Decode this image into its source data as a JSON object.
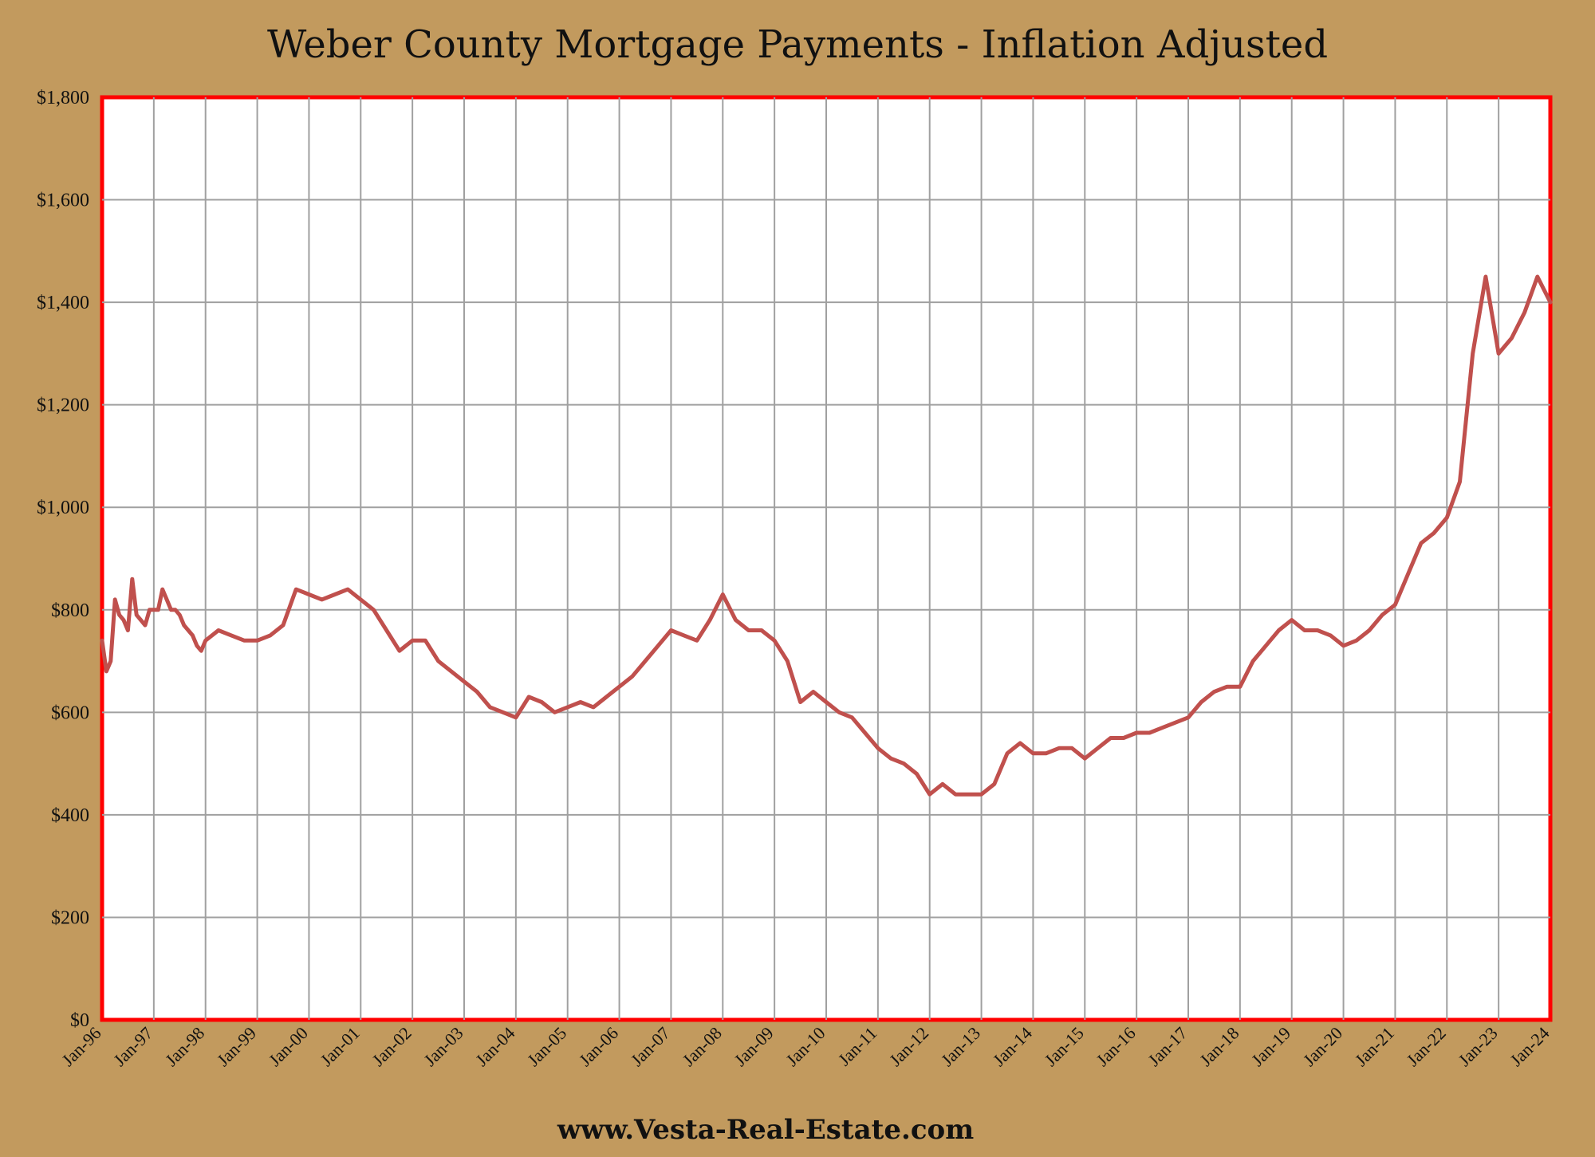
{
  "chart_data": {
    "type": "line",
    "title": "Weber County Mortgage Payments - Inflation Adjusted",
    "footer": "www.Vesta-Real-Estate.com",
    "xlabel": "",
    "ylabel": "",
    "ylim": [
      0,
      1800
    ],
    "y_ticks": [
      "$0",
      "$200",
      "$400",
      "$600",
      "$800",
      "$1,000",
      "$1,200",
      "$1,400",
      "$1,600",
      "$1,800"
    ],
    "x_tick_labels": [
      "Jan-96",
      "Jan-97",
      "Jan-98",
      "Jan-99",
      "Jan-00",
      "Jan-01",
      "Jan-02",
      "Jan-03",
      "Jan-04",
      "Jan-05",
      "Jan-06",
      "Jan-07",
      "Jan-08",
      "Jan-09",
      "Jan-10",
      "Jan-11",
      "Jan-12",
      "Jan-13",
      "Jan-14",
      "Jan-15",
      "Jan-16",
      "Jan-17",
      "Jan-18",
      "Jan-19",
      "Jan-20",
      "Jan-21",
      "Jan-22",
      "Jan-23",
      "Jan-24"
    ],
    "grid": true,
    "colors": {
      "background": "#c29a5e",
      "plot_background": "#ffffff",
      "plot_border": "#ff0000",
      "grid": "#a0a0a0",
      "line": "#c0504d"
    },
    "series": [
      {
        "x": [
          "1996-01",
          "1996-02",
          "1996-03",
          "1996-04",
          "1996-05",
          "1996-06",
          "1996-07",
          "1996-08",
          "1996-09",
          "1996-10",
          "1996-11",
          "1996-12",
          "1997-01",
          "1997-02",
          "1997-03",
          "1997-04",
          "1997-05",
          "1997-06",
          "1997-07",
          "1997-08",
          "1997-09",
          "1997-10",
          "1997-11",
          "1997-12",
          "1998-01",
          "1998-04",
          "1998-07",
          "1998-10",
          "1999-01",
          "1999-04",
          "1999-07",
          "1999-10",
          "2000-01",
          "2000-04",
          "2000-07",
          "2000-10",
          "2001-01",
          "2001-04",
          "2001-07",
          "2001-10",
          "2002-01",
          "2002-04",
          "2002-07",
          "2002-10",
          "2003-01",
          "2003-04",
          "2003-07",
          "2003-10",
          "2004-01",
          "2004-04",
          "2004-07",
          "2004-10",
          "2005-01",
          "2005-04",
          "2005-07",
          "2005-10",
          "2006-01",
          "2006-04",
          "2006-07",
          "2006-10",
          "2007-01",
          "2007-04",
          "2007-07",
          "2007-10",
          "2008-01",
          "2008-04",
          "2008-07",
          "2008-10",
          "2009-01",
          "2009-04",
          "2009-07",
          "2009-10",
          "2010-01",
          "2010-04",
          "2010-07",
          "2010-10",
          "2011-01",
          "2011-04",
          "2011-07",
          "2011-10",
          "2012-01",
          "2012-04",
          "2012-07",
          "2012-10",
          "2013-01",
          "2013-04",
          "2013-07",
          "2013-10",
          "2014-01",
          "2014-04",
          "2014-07",
          "2014-10",
          "2015-01",
          "2015-04",
          "2015-07",
          "2015-10",
          "2016-01",
          "2016-04",
          "2016-07",
          "2016-10",
          "2017-01",
          "2017-04",
          "2017-07",
          "2017-10",
          "2018-01",
          "2018-04",
          "2018-07",
          "2018-10",
          "2019-01",
          "2019-04",
          "2019-07",
          "2019-10",
          "2020-01",
          "2020-04",
          "2020-07",
          "2020-10",
          "2021-01",
          "2021-04",
          "2021-07",
          "2021-10",
          "2022-01",
          "2022-04",
          "2022-07",
          "2022-10",
          "2023-01",
          "2023-04",
          "2023-07",
          "2023-10",
          "2024-01"
        ],
        "values": [
          740,
          680,
          700,
          820,
          790,
          780,
          760,
          860,
          790,
          780,
          770,
          800,
          800,
          800,
          840,
          820,
          800,
          800,
          790,
          770,
          760,
          750,
          730,
          720,
          740,
          760,
          750,
          740,
          740,
          750,
          770,
          840,
          830,
          820,
          830,
          840,
          820,
          800,
          760,
          720,
          740,
          740,
          700,
          680,
          660,
          640,
          610,
          600,
          590,
          630,
          620,
          600,
          610,
          620,
          610,
          630,
          650,
          670,
          700,
          730,
          760,
          750,
          740,
          780,
          830,
          780,
          760,
          760,
          740,
          700,
          620,
          640,
          620,
          600,
          590,
          560,
          530,
          510,
          500,
          480,
          440,
          460,
          440,
          440,
          440,
          460,
          520,
          540,
          520,
          520,
          530,
          530,
          510,
          530,
          550,
          550,
          560,
          560,
          570,
          580,
          590,
          620,
          640,
          650,
          650,
          700,
          730,
          760,
          780,
          760,
          760,
          750,
          730,
          740,
          760,
          790,
          810,
          870,
          930,
          950,
          980,
          1050,
          1300,
          1450,
          1300,
          1330,
          1380,
          1450,
          1400
        ]
      }
    ]
  }
}
